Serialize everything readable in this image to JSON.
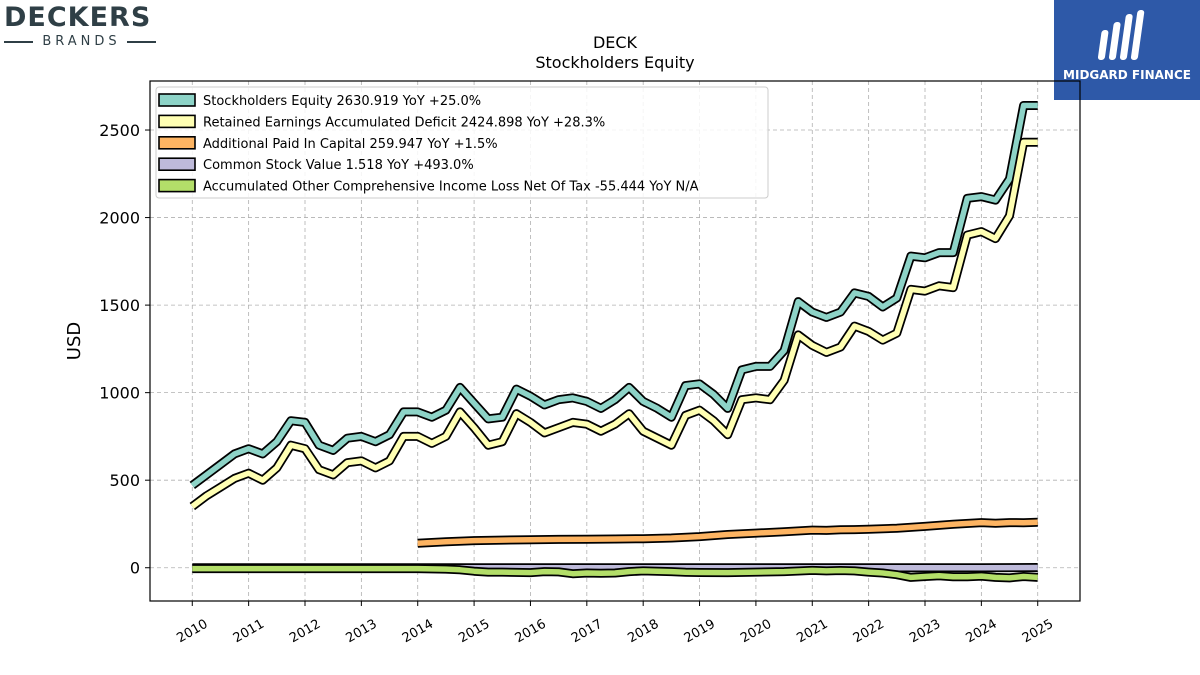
{
  "brand_left": {
    "name": "DECKERS",
    "sub": "BRANDS"
  },
  "brand_right": {
    "name": "MIDGARD FINANCE",
    "bg": "#2e59a8"
  },
  "chart_data": {
    "type": "line",
    "title": "DECK",
    "subtitle": "Stockholders  Equity",
    "ylabel": "USD",
    "xlabel": "",
    "ylim": [
      -190,
      2780
    ],
    "xlim": [
      2009.25,
      2025.75
    ],
    "yticks": [
      0,
      500,
      1000,
      1500,
      2000,
      2500
    ],
    "xticks": [
      "2010",
      "2011",
      "2012",
      "2013",
      "2014",
      "2015",
      "2016",
      "2017",
      "2018",
      "2019",
      "2020",
      "2021",
      "2022",
      "2023",
      "2024",
      "2025"
    ],
    "grid": true,
    "legend_position": "top-left",
    "series": [
      {
        "name": "Stockholders Equity",
        "legend": "Stockholders Equity  2630.919 YoY +25.0%",
        "color": "#8dd3c7",
        "x": [
          2010.0,
          2010.25,
          2010.5,
          2010.75,
          2011.0,
          2011.25,
          2011.5,
          2011.75,
          2012.0,
          2012.25,
          2012.5,
          2012.75,
          2013.0,
          2013.25,
          2013.5,
          2013.75,
          2014.0,
          2014.25,
          2014.5,
          2014.75,
          2015.0,
          2015.25,
          2015.5,
          2015.75,
          2016.0,
          2016.25,
          2016.5,
          2016.75,
          2017.0,
          2017.25,
          2017.5,
          2017.75,
          2018.0,
          2018.25,
          2018.5,
          2018.75,
          2019.0,
          2019.25,
          2019.5,
          2019.75,
          2020.0,
          2020.25,
          2020.5,
          2020.75,
          2021.0,
          2021.25,
          2021.5,
          2021.75,
          2022.0,
          2022.25,
          2022.5,
          2022.75,
          2023.0,
          2023.25,
          2023.5,
          2023.75,
          2024.0,
          2024.25,
          2024.5,
          2024.75,
          2025.0
        ],
        "values": [
          470,
          530,
          590,
          650,
          680,
          650,
          720,
          840,
          830,
          700,
          670,
          740,
          750,
          720,
          760,
          890,
          890,
          860,
          900,
          1030,
          940,
          850,
          860,
          1020,
          980,
          930,
          960,
          970,
          950,
          910,
          960,
          1030,
          950,
          910,
          860,
          1040,
          1050,
          990,
          910,
          1130,
          1150,
          1150,
          1240,
          1520,
          1460,
          1430,
          1460,
          1570,
          1550,
          1490,
          1540,
          1780,
          1770,
          1800,
          1800,
          2110,
          2120,
          2100,
          2220,
          2640,
          2640
        ]
      },
      {
        "name": "Retained Earnings Accumulated Deficit",
        "legend": "Retained Earnings Accumulated Deficit  2424.898 YoY +28.3%",
        "color": "#ffffb3",
        "x": [
          2010.0,
          2010.25,
          2010.5,
          2010.75,
          2011.0,
          2011.25,
          2011.5,
          2011.75,
          2012.0,
          2012.25,
          2012.5,
          2012.75,
          2013.0,
          2013.25,
          2013.5,
          2013.75,
          2014.0,
          2014.25,
          2014.5,
          2014.75,
          2015.0,
          2015.25,
          2015.5,
          2015.75,
          2016.0,
          2016.25,
          2016.5,
          2016.75,
          2017.0,
          2017.25,
          2017.5,
          2017.75,
          2018.0,
          2018.25,
          2018.5,
          2018.75,
          2019.0,
          2019.25,
          2019.5,
          2019.75,
          2020.0,
          2020.25,
          2020.5,
          2020.75,
          2021.0,
          2021.25,
          2021.5,
          2021.75,
          2022.0,
          2022.25,
          2022.5,
          2022.75,
          2023.0,
          2023.25,
          2023.5,
          2023.75,
          2024.0,
          2024.25,
          2024.5,
          2024.75,
          2025.0
        ],
        "values": [
          350,
          410,
          460,
          510,
          540,
          500,
          570,
          700,
          680,
          560,
          530,
          600,
          610,
          570,
          610,
          750,
          750,
          710,
          750,
          890,
          800,
          700,
          720,
          880,
          830,
          770,
          800,
          830,
          820,
          780,
          820,
          880,
          780,
          740,
          700,
          870,
          900,
          840,
          760,
          960,
          970,
          960,
          1070,
          1330,
          1270,
          1230,
          1260,
          1380,
          1350,
          1300,
          1340,
          1590,
          1580,
          1610,
          1600,
          1900,
          1920,
          1880,
          2010,
          2430,
          2430
        ]
      },
      {
        "name": "Additional Paid In Capital",
        "legend": "Additional Paid In Capital  259.947 YoY +1.5%",
        "color": "#fdb462",
        "x": [
          2014.0,
          2014.5,
          2015.0,
          2015.5,
          2016.0,
          2016.5,
          2017.0,
          2017.5,
          2018.0,
          2018.5,
          2019.0,
          2019.5,
          2020.0,
          2020.5,
          2021.0,
          2021.25,
          2021.5,
          2021.75,
          2022.0,
          2022.5,
          2023.0,
          2023.5,
          2024.0,
          2024.25,
          2024.5,
          2024.75,
          2025.0
        ],
        "values": [
          140,
          148,
          155,
          158,
          160,
          162,
          163,
          164,
          166,
          170,
          178,
          190,
          198,
          205,
          215,
          213,
          217,
          218,
          220,
          226,
          236,
          248,
          258,
          254,
          258,
          257,
          260
        ]
      },
      {
        "name": "Common Stock Value",
        "legend": "Common Stock Value  1.518 YoY +493.0%",
        "color": "#bebada",
        "x": [
          2010.0,
          2011.0,
          2012.0,
          2013.0,
          2014.0,
          2015.0,
          2016.0,
          2017.0,
          2018.0,
          2019.0,
          2020.0,
          2021.0,
          2022.0,
          2023.0,
          2024.0,
          2025.0
        ],
        "values": [
          0.4,
          0.4,
          0.4,
          0.4,
          0.4,
          0.4,
          0.3,
          0.3,
          0.3,
          0.3,
          0.3,
          0.3,
          0.3,
          0.3,
          0.3,
          1.5
        ]
      },
      {
        "name": "Accumulated Other Comprehensive Income Loss Net Of Tax",
        "legend": "Accumulated Other Comprehensive Income Loss Net Of Tax  -55.444 YoY N/A",
        "color": "#b3de69",
        "x": [
          2010.0,
          2011.0,
          2011.5,
          2012.0,
          2012.5,
          2013.0,
          2013.5,
          2014.0,
          2014.5,
          2014.75,
          2015.0,
          2015.25,
          2015.5,
          2016.0,
          2016.25,
          2016.5,
          2016.75,
          2017.0,
          2017.25,
          2017.5,
          2017.75,
          2018.0,
          2018.25,
          2018.5,
          2018.75,
          2019.0,
          2019.5,
          2020.0,
          2020.5,
          2021.0,
          2021.25,
          2021.5,
          2021.75,
          2022.0,
          2022.25,
          2022.5,
          2022.75,
          2023.0,
          2023.25,
          2023.5,
          2023.75,
          2024.0,
          2024.25,
          2024.5,
          2024.75,
          2025.0
        ],
        "values": [
          -5,
          -5,
          -5,
          -5,
          -5,
          -5,
          -5,
          -5,
          -8,
          -12,
          -20,
          -25,
          -25,
          -28,
          -22,
          -24,
          -34,
          -30,
          -32,
          -30,
          -22,
          -18,
          -20,
          -22,
          -26,
          -27,
          -28,
          -25,
          -22,
          -15,
          -18,
          -16,
          -18,
          -25,
          -30,
          -40,
          -55,
          -50,
          -46,
          -52,
          -52,
          -48,
          -55,
          -58,
          -50,
          -55
        ]
      }
    ]
  }
}
